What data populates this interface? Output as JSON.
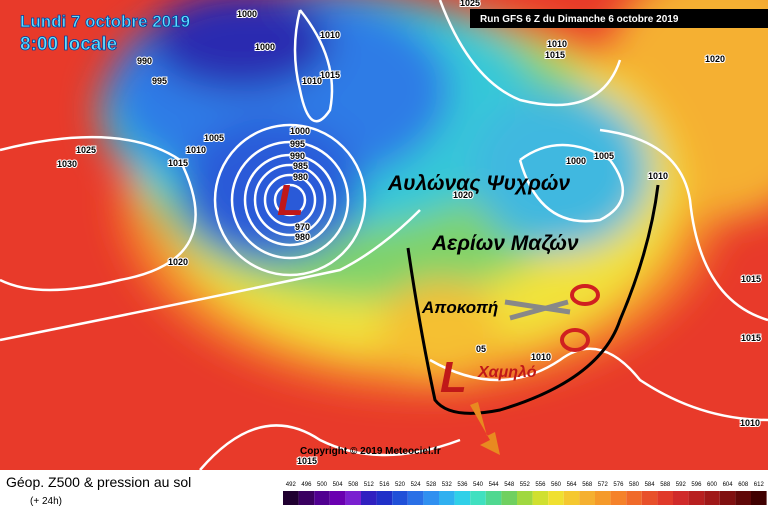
{
  "header": {
    "date": "Lundi 7 octobre 2019",
    "time": "8:00 locale",
    "run": "Run GFS 6 Z du Dimanche 6 octobre 2019"
  },
  "annotations": {
    "line1": "Αυλώνας Ψυχρών",
    "line2": "Αερίων Μαζών",
    "cutoff": "Αποκοπή",
    "low": "Χαμηλό"
  },
  "lows": [
    "L",
    "L"
  ],
  "isobar_labels": [
    "1000",
    "1025",
    "1010",
    "1015",
    "1020",
    "990",
    "995",
    "1000",
    "1010",
    "1015",
    "1010",
    "1005",
    "1010",
    "1015",
    "1025",
    "1030",
    "1000",
    "995",
    "990",
    "985",
    "980",
    "970",
    "980",
    "1020",
    "1020",
    "1000",
    "1005",
    "1010",
    "1015",
    "1015",
    "1010",
    "1010",
    "05",
    "1015"
  ],
  "copyright": "Copyright © 2019 Meteociel.fr",
  "footer": {
    "title": "Géop. Z500 & pression au sol",
    "step": "(+ 24h)"
  },
  "scale": [
    492,
    496,
    500,
    504,
    508,
    512,
    516,
    520,
    524,
    528,
    532,
    536,
    540,
    544,
    548,
    552,
    556,
    560,
    564,
    568,
    572,
    576,
    580,
    584,
    588,
    592,
    596,
    600,
    604,
    608,
    612
  ]
}
